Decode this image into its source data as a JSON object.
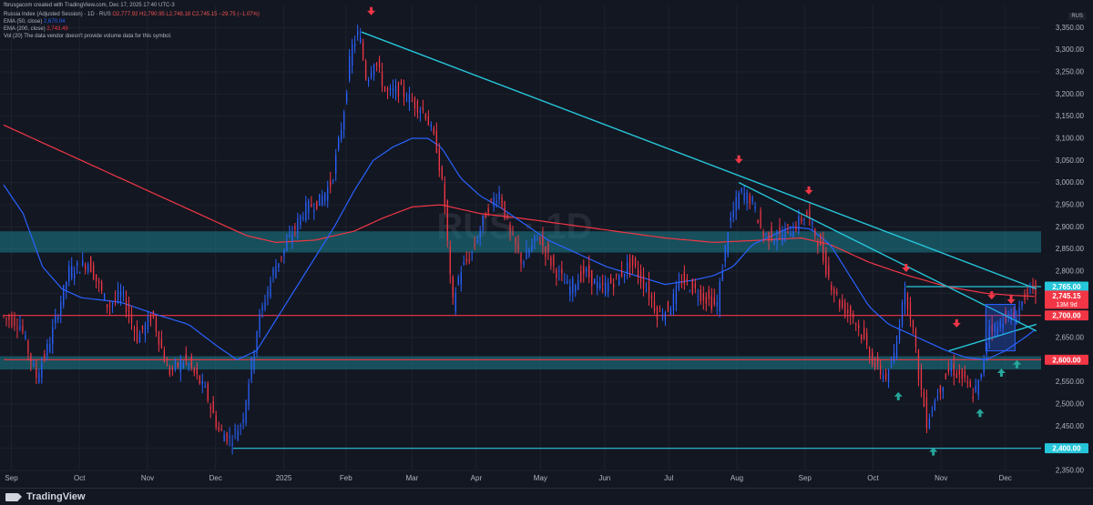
{
  "header": {
    "creator_line": "fbrusgacom created with TradingView.com, Dec 17, 2025 17:40 UTC-3",
    "symbol_line": "Russia Index (Adjusted Session) · 1D · RUS",
    "ohlc_line": "O2,777.92 H2,790.95 L2,748.18 C2,745.15 −29.75 (−1.07%)",
    "ema50_label": "EMA (50, close)",
    "ema50_value": "2,670.04",
    "ema200_label": "EMA (200, close)",
    "ema200_value": "2,743.49",
    "vol_line": "Vol (20) The data vendor doesn't provide volume data for this symbol."
  },
  "symbol_badge": "RUS",
  "watermark": "RUS · 1D",
  "footer": {
    "brand": "TradingView"
  },
  "colors": {
    "background": "#131722",
    "up_candle": "#2962ff",
    "down_candle": "#f23645",
    "ema50": "#2962ff",
    "ema200": "#f23645",
    "zone": "#1b7f8c",
    "trendline": "#26c6da",
    "arrow_down": "#f23645",
    "arrow_up": "#26a69a"
  },
  "chart_data": {
    "type": "candlestick",
    "title": "Russia Index (Adjusted Session) · 1D · RUS",
    "ylim": [
      2350,
      3400
    ],
    "y_ticks": [
      "3,350.00",
      "3,300.00",
      "3,250.00",
      "3,200.00",
      "3,150.00",
      "3,100.00",
      "3,050.00",
      "3,000.00",
      "2,950.00",
      "2,900.00",
      "2,850.00",
      "2,800.00",
      "2,750.00",
      "2,700.00",
      "2,650.00",
      "2,600.00",
      "2,550.00",
      "2,500.00",
      "2,450.00",
      "2,400.00",
      "2,350.00"
    ],
    "x_ticks": [
      "Sep",
      "Oct",
      "Nov",
      "Dec",
      "2025",
      "Feb",
      "Mar",
      "Apr",
      "May",
      "Jun",
      "Jul",
      "Aug",
      "Sep",
      "Oct",
      "Nov",
      "Dec"
    ],
    "x_ticks_day": [
      4,
      39,
      74,
      109,
      144,
      176,
      210,
      243,
      276,
      309,
      342,
      377,
      412,
      447,
      482,
      515
    ],
    "total_days": 580,
    "price_path": [
      [
        0,
        2700
      ],
      [
        10,
        2680
      ],
      [
        18,
        2560
      ],
      [
        25,
        2640
      ],
      [
        35,
        2800
      ],
      [
        45,
        2820
      ],
      [
        55,
        2720
      ],
      [
        62,
        2750
      ],
      [
        70,
        2650
      ],
      [
        78,
        2700
      ],
      [
        86,
        2570
      ],
      [
        95,
        2600
      ],
      [
        105,
        2530
      ],
      [
        112,
        2440
      ],
      [
        118,
        2420
      ],
      [
        124,
        2460
      ],
      [
        132,
        2680
      ],
      [
        140,
        2800
      ],
      [
        148,
        2870
      ],
      [
        156,
        2940
      ],
      [
        164,
        2960
      ],
      [
        170,
        3000
      ],
      [
        176,
        3150
      ],
      [
        180,
        3300
      ],
      [
        184,
        3340
      ],
      [
        188,
        3230
      ],
      [
        192,
        3280
      ],
      [
        198,
        3200
      ],
      [
        205,
        3210
      ],
      [
        212,
        3180
      ],
      [
        218,
        3160
      ],
      [
        224,
        3080
      ],
      [
        228,
        2960
      ],
      [
        232,
        2720
      ],
      [
        236,
        2800
      ],
      [
        242,
        2840
      ],
      [
        250,
        2940
      ],
      [
        256,
        2980
      ],
      [
        262,
        2880
      ],
      [
        268,
        2820
      ],
      [
        276,
        2880
      ],
      [
        284,
        2810
      ],
      [
        292,
        2760
      ],
      [
        300,
        2800
      ],
      [
        308,
        2760
      ],
      [
        316,
        2780
      ],
      [
        324,
        2820
      ],
      [
        332,
        2760
      ],
      [
        338,
        2700
      ],
      [
        344,
        2720
      ],
      [
        350,
        2780
      ],
      [
        356,
        2760
      ],
      [
        362,
        2740
      ],
      [
        368,
        2720
      ],
      [
        374,
        2900
      ],
      [
        380,
        2980
      ],
      [
        386,
        2960
      ],
      [
        392,
        2880
      ],
      [
        400,
        2880
      ],
      [
        408,
        2900
      ],
      [
        414,
        2930
      ],
      [
        420,
        2870
      ],
      [
        426,
        2780
      ],
      [
        432,
        2720
      ],
      [
        438,
        2700
      ],
      [
        444,
        2640
      ],
      [
        450,
        2580
      ],
      [
        456,
        2560
      ],
      [
        460,
        2620
      ],
      [
        464,
        2760
      ],
      [
        468,
        2700
      ],
      [
        472,
        2560
      ],
      [
        476,
        2460
      ],
      [
        482,
        2530
      ],
      [
        488,
        2580
      ],
      [
        494,
        2560
      ],
      [
        500,
        2520
      ],
      [
        504,
        2560
      ],
      [
        508,
        2680
      ],
      [
        512,
        2670
      ],
      [
        516,
        2700
      ],
      [
        520,
        2690
      ],
      [
        524,
        2720
      ],
      [
        528,
        2760
      ],
      [
        531,
        2745
      ]
    ],
    "ema50_path": [
      [
        0,
        2995
      ],
      [
        10,
        2930
      ],
      [
        20,
        2810
      ],
      [
        30,
        2760
      ],
      [
        40,
        2740
      ],
      [
        60,
        2730
      ],
      [
        80,
        2700
      ],
      [
        95,
        2680
      ],
      [
        110,
        2630
      ],
      [
        120,
        2600
      ],
      [
        130,
        2620
      ],
      [
        140,
        2690
      ],
      [
        150,
        2760
      ],
      [
        160,
        2830
      ],
      [
        170,
        2900
      ],
      [
        180,
        2980
      ],
      [
        190,
        3050
      ],
      [
        200,
        3080
      ],
      [
        210,
        3100
      ],
      [
        218,
        3100
      ],
      [
        225,
        3080
      ],
      [
        235,
        3010
      ],
      [
        245,
        2970
      ],
      [
        255,
        2945
      ],
      [
        265,
        2915
      ],
      [
        280,
        2870
      ],
      [
        295,
        2840
      ],
      [
        310,
        2810
      ],
      [
        325,
        2790
      ],
      [
        340,
        2770
      ],
      [
        355,
        2780
      ],
      [
        365,
        2790
      ],
      [
        375,
        2810
      ],
      [
        385,
        2860
      ],
      [
        395,
        2880
      ],
      [
        405,
        2900
      ],
      [
        415,
        2895
      ],
      [
        425,
        2860
      ],
      [
        435,
        2790
      ],
      [
        445,
        2720
      ],
      [
        455,
        2680
      ],
      [
        465,
        2660
      ],
      [
        475,
        2640
      ],
      [
        485,
        2620
      ],
      [
        495,
        2605
      ],
      [
        505,
        2600
      ],
      [
        515,
        2620
      ],
      [
        525,
        2650
      ],
      [
        531,
        2670
      ]
    ],
    "ema200_path": [
      [
        0,
        3130
      ],
      [
        15,
        3100
      ],
      [
        30,
        3070
      ],
      [
        50,
        3030
      ],
      [
        70,
        2990
      ],
      [
        90,
        2950
      ],
      [
        110,
        2910
      ],
      [
        125,
        2880
      ],
      [
        140,
        2865
      ],
      [
        160,
        2870
      ],
      [
        180,
        2890
      ],
      [
        195,
        2920
      ],
      [
        210,
        2945
      ],
      [
        225,
        2950
      ],
      [
        245,
        2930
      ],
      [
        265,
        2920
      ],
      [
        290,
        2905
      ],
      [
        315,
        2890
      ],
      [
        340,
        2875
      ],
      [
        365,
        2865
      ],
      [
        390,
        2870
      ],
      [
        410,
        2875
      ],
      [
        425,
        2860
      ],
      [
        445,
        2820
      ],
      [
        465,
        2790
      ],
      [
        485,
        2765
      ],
      [
        505,
        2750
      ],
      [
        520,
        2745
      ],
      [
        531,
        2743
      ]
    ],
    "zones": [
      {
        "y0": 2842,
        "y1": 2890
      },
      {
        "y0": 2578,
        "y1": 2608
      }
    ],
    "levels": [
      {
        "value": 2765.0,
        "label": "2,765.00",
        "color": "#26c6da",
        "x_start_day": 464
      },
      {
        "value": 2700.0,
        "label": "2,700.00",
        "color": "#f23645",
        "x_start_day": 0
      },
      {
        "value": 2600.0,
        "label": "2,600.00",
        "color": "#f23645",
        "x_start_day": 0
      },
      {
        "value": 2400.0,
        "label": "2,400.00",
        "color": "#26c6da",
        "x_start_day": 118
      }
    ],
    "last_price": {
      "value": 2745.15,
      "label": "2,745.15",
      "countdown": "13M 9d"
    },
    "trendlines": [
      {
        "from": [
          184,
          3340
        ],
        "to": [
          531,
          2760
        ]
      },
      {
        "from": [
          378,
          3000
        ],
        "to": [
          531,
          2665
        ]
      },
      {
        "from": [
          486,
          2620
        ],
        "to": [
          531,
          2680
        ]
      }
    ],
    "highlight_box": {
      "from_day": 505,
      "to_day": 520,
      "y0": 2620,
      "y1": 2725
    },
    "arrows_down": [
      [
        189,
        3380
      ],
      [
        378,
        3045
      ],
      [
        414,
        2975
      ],
      [
        464,
        2800
      ],
      [
        490,
        2675
      ],
      [
        508,
        2738
      ],
      [
        518,
        2728
      ]
    ],
    "arrows_up": [
      [
        460,
        2525
      ],
      [
        478,
        2400
      ],
      [
        502,
        2487
      ],
      [
        513,
        2578
      ],
      [
        521,
        2597
      ]
    ]
  }
}
